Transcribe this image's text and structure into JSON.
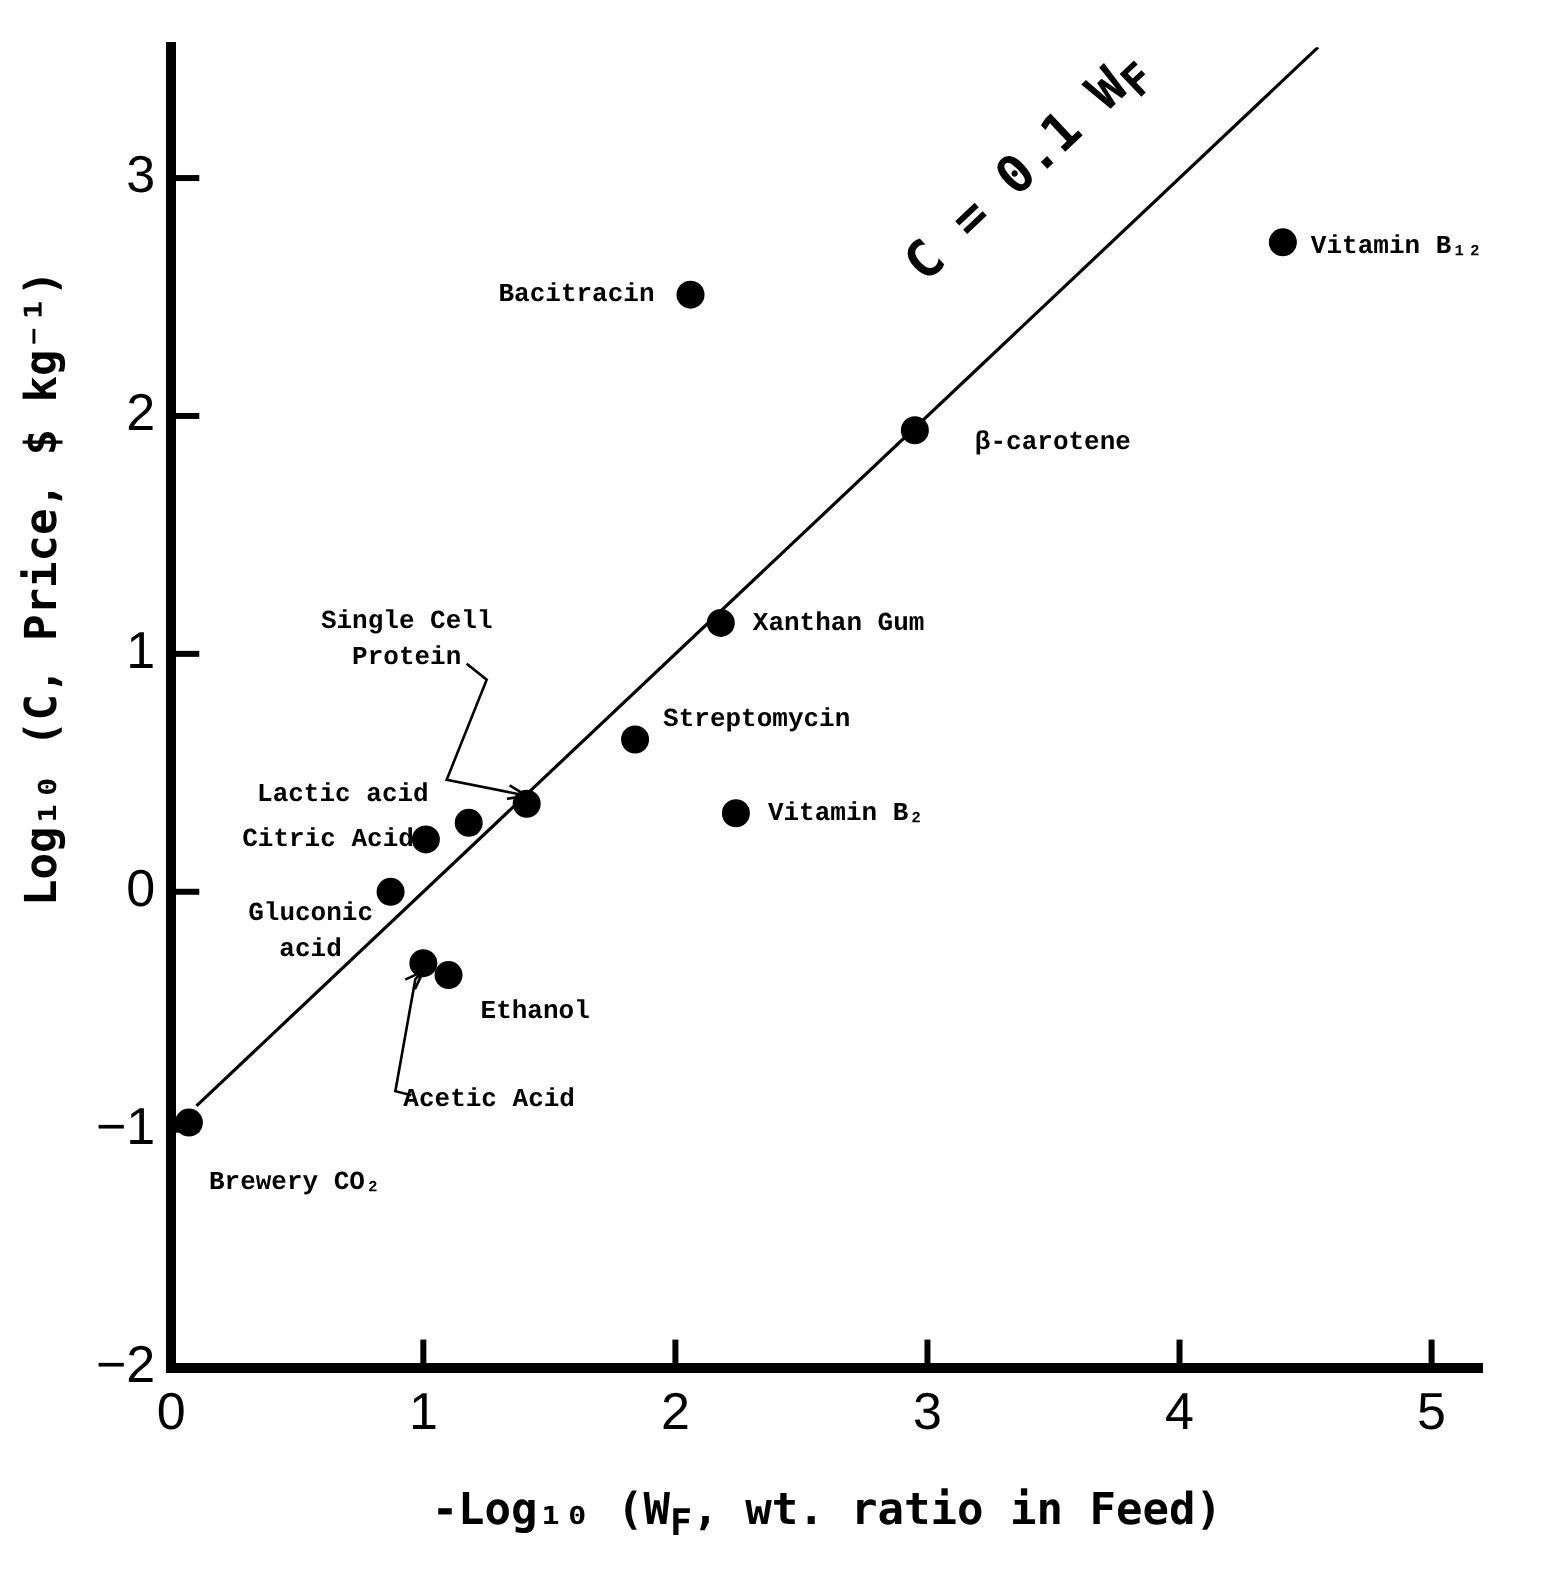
{
  "chart_data": {
    "type": "scatter",
    "xlabel": "-Log₁₀ (W$_{F}$, wt. ratio in Feed)",
    "ylabel": "Log₁₀ (C, Price, $ kg⁻¹)",
    "xlim": [
      0,
      5.2
    ],
    "xticks": [
      0,
      1,
      2,
      3,
      4,
      5
    ],
    "ylim": [
      -2,
      3.55
    ],
    "yticks": [
      -2,
      -1,
      0,
      1,
      2,
      3
    ],
    "grid": false,
    "legend": false,
    "marker": "circle",
    "series": [
      {
        "color": "#000000",
        "x": [
          2.06,
          4.41,
          2.95,
          2.18,
          1.84,
          2.24,
          1.41,
          1.18,
          1.01,
          0.87,
          1.0,
          1.1,
          0.07
        ],
        "values": [
          2.51,
          2.73,
          1.94,
          1.13,
          0.64,
          0.33,
          0.37,
          0.29,
          0.22,
          0.0,
          -0.3,
          -0.35,
          -0.97
        ]
      },
      {
        "type": "line",
        "color": "#000000",
        "x": [
          0.1,
          4.55
        ],
        "values": [
          -0.9,
          3.55
        ],
        "line_style": "solid",
        "marker": "none"
      }
    ],
    "annotations": [
      {
        "text": "Bacitracin",
        "x": 2.06,
        "y": 2.51
      },
      {
        "text": "Vitamin B₁₂",
        "x": 4.41,
        "y": 2.73
      },
      {
        "text": "β-carotene",
        "x": 2.95,
        "y": 1.94
      },
      {
        "text": "Xanthan Gum",
        "x": 2.18,
        "y": 1.13
      },
      {
        "text": "Streptomycin",
        "x": 1.84,
        "y": 0.64
      },
      {
        "text": "Vitamin B₂",
        "x": 2.24,
        "y": 0.33
      },
      {
        "text": "Single Cell Protein",
        "x": 1.41,
        "y": 0.37
      },
      {
        "text": "Lactic acid",
        "x": 1.18,
        "y": 0.29
      },
      {
        "text": "Citric Acid",
        "x": 1.01,
        "y": 0.22
      },
      {
        "text": "Gluconic acid",
        "x": 0.87,
        "y": 0.0
      },
      {
        "text": "Ethanol",
        "x": 1.1,
        "y": -0.35
      },
      {
        "text": "Acetic Acid",
        "x": 1.0,
        "y": -0.3
      },
      {
        "text": "Brewery CO₂",
        "x": 0.07,
        "y": -0.97
      },
      "C = 0.1 W$_{F}$"
    ]
  }
}
